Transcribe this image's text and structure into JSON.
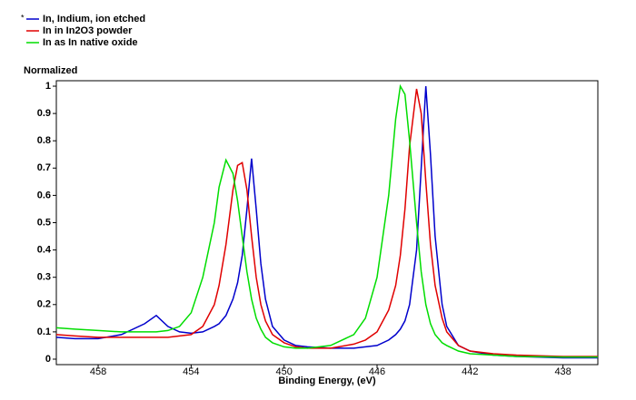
{
  "chart_data": {
    "type": "line",
    "ylabel": "Normalized",
    "xlabel": "Binding Energy, (eV)",
    "active_marker": "*",
    "xlim": [
      459.8,
      436.5
    ],
    "ylim": [
      -0.02,
      1.02
    ],
    "xticks": [
      458,
      454,
      450,
      446,
      442,
      438
    ],
    "yticks": [
      0,
      0.1,
      0.2,
      0.3,
      0.4,
      0.5,
      0.6,
      0.7,
      0.8,
      0.9,
      1
    ],
    "x": [
      459.8,
      459,
      458,
      457,
      456,
      455.5,
      455,
      454.5,
      454,
      453.5,
      453,
      452.8,
      452.5,
      452.2,
      452,
      451.8,
      451.6,
      451.4,
      451.2,
      451,
      450.8,
      450.5,
      450,
      449.5,
      449,
      448,
      447,
      446.5,
      446,
      445.5,
      445.2,
      445,
      444.8,
      444.6,
      444.3,
      444.1,
      443.9,
      443.7,
      443.5,
      443.2,
      443,
      442.5,
      442,
      441,
      440,
      438,
      436.5
    ],
    "series": [
      {
        "name": "In, Indium, ion etched",
        "color": "#0000cc",
        "values": [
          0.08,
          0.075,
          0.075,
          0.09,
          0.13,
          0.16,
          0.12,
          0.1,
          0.095,
          0.1,
          0.12,
          0.13,
          0.16,
          0.22,
          0.28,
          0.38,
          0.55,
          0.735,
          0.55,
          0.35,
          0.22,
          0.12,
          0.07,
          0.05,
          0.045,
          0.04,
          0.04,
          0.045,
          0.05,
          0.07,
          0.09,
          0.11,
          0.14,
          0.2,
          0.4,
          0.7,
          1.0,
          0.75,
          0.45,
          0.2,
          0.12,
          0.05,
          0.03,
          0.015,
          0.01,
          0.005,
          0.005
        ]
      },
      {
        "name": "In in In2O3 powder",
        "color": "#e00000",
        "values": [
          0.09,
          0.085,
          0.08,
          0.08,
          0.08,
          0.08,
          0.08,
          0.085,
          0.09,
          0.12,
          0.2,
          0.27,
          0.42,
          0.62,
          0.71,
          0.72,
          0.62,
          0.45,
          0.3,
          0.2,
          0.14,
          0.09,
          0.06,
          0.045,
          0.04,
          0.04,
          0.055,
          0.07,
          0.1,
          0.18,
          0.27,
          0.38,
          0.55,
          0.78,
          0.99,
          0.9,
          0.65,
          0.42,
          0.27,
          0.15,
          0.1,
          0.05,
          0.03,
          0.02,
          0.015,
          0.01,
          0.01
        ]
      },
      {
        "name": "In as In native oxide",
        "color": "#00dd00",
        "values": [
          0.115,
          0.11,
          0.105,
          0.1,
          0.1,
          0.1,
          0.105,
          0.12,
          0.17,
          0.3,
          0.5,
          0.63,
          0.73,
          0.68,
          0.58,
          0.45,
          0.32,
          0.22,
          0.15,
          0.11,
          0.08,
          0.06,
          0.045,
          0.04,
          0.04,
          0.05,
          0.09,
          0.15,
          0.3,
          0.6,
          0.88,
          1.0,
          0.97,
          0.8,
          0.5,
          0.32,
          0.2,
          0.13,
          0.09,
          0.06,
          0.05,
          0.03,
          0.02,
          0.015,
          0.01,
          0.008,
          0.008
        ]
      }
    ]
  }
}
